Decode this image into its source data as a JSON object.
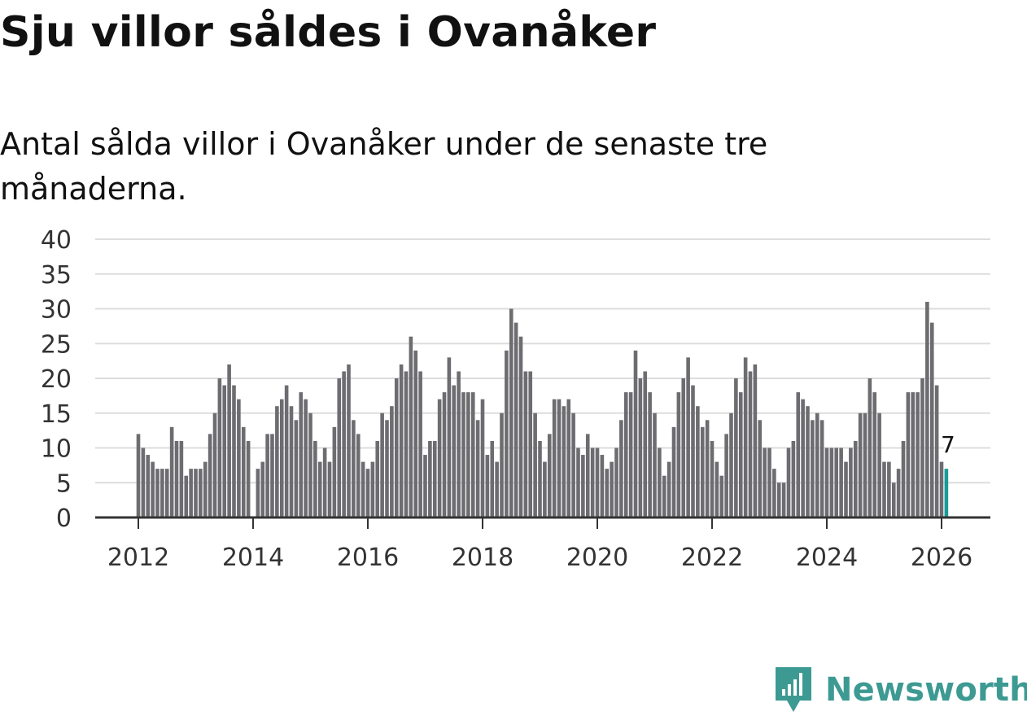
{
  "title": "Sju villor såldes i Ovanåker",
  "subtitle": "Antal sålda villor i Ovanåker under de senaste tre månaderna.",
  "brand": {
    "name": "Newsworthy",
    "icon": "newsworthy-logo-icon",
    "color": "#3d9a93"
  },
  "colors": {
    "bar": "#6d6c70",
    "highlight": "#1a9a96",
    "grid": "#dddddd",
    "axis": "#333333"
  },
  "chart_data": {
    "type": "bar",
    "title": "Sju villor såldes i Ovanåker",
    "xlabel": "",
    "ylabel": "",
    "ylim": [
      0,
      40
    ],
    "yticks": [
      "0",
      "5",
      "10",
      "15",
      "20",
      "25",
      "30",
      "35",
      "40"
    ],
    "xticks": [
      "2012",
      "2014",
      "2016",
      "2018",
      "2020",
      "2022",
      "2024",
      "2026"
    ],
    "x_start": "2012-01",
    "x_end": "2026-01",
    "grid": true,
    "highlight_label": "7",
    "series": [
      {
        "name": "Antal sålda villor",
        "values": [
          12,
          10,
          9,
          8,
          7,
          7,
          7,
          13,
          11,
          11,
          6,
          7,
          7,
          7,
          8,
          12,
          15,
          20,
          19,
          22,
          19,
          17,
          13,
          11,
          0,
          7,
          8,
          12,
          12,
          16,
          17,
          19,
          16,
          14,
          18,
          17,
          15,
          11,
          8,
          10,
          8,
          13,
          20,
          21,
          22,
          14,
          12,
          8,
          7,
          8,
          11,
          15,
          14,
          16,
          20,
          22,
          21,
          26,
          24,
          21,
          9,
          11,
          11,
          17,
          18,
          23,
          19,
          21,
          18,
          18,
          18,
          14,
          17,
          9,
          11,
          8,
          15,
          24,
          30,
          28,
          26,
          21,
          21,
          15,
          11,
          8,
          12,
          17,
          17,
          16,
          17,
          15,
          10,
          9,
          12,
          10,
          10,
          9,
          7,
          8,
          10,
          14,
          18,
          18,
          24,
          20,
          21,
          18,
          15,
          10,
          6,
          8,
          13,
          18,
          20,
          23,
          19,
          16,
          13,
          14,
          11,
          8,
          6,
          12,
          15,
          20,
          18,
          23,
          21,
          22,
          14,
          10,
          10,
          7,
          5,
          5,
          10,
          11,
          18,
          17,
          16,
          14,
          15,
          14,
          10,
          10,
          10,
          10,
          8,
          10,
          11,
          15,
          15,
          20,
          18,
          15,
          8,
          8,
          5,
          7,
          11,
          18,
          18,
          18,
          20,
          31,
          28,
          19,
          8,
          7
        ]
      }
    ]
  }
}
